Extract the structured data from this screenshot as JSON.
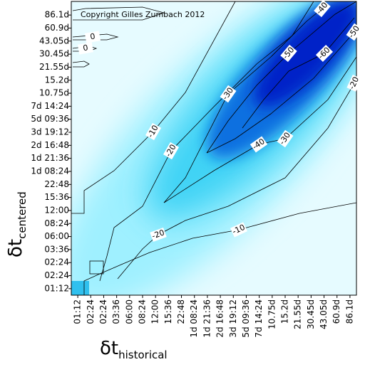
{
  "chart_data": {
    "type": "contour",
    "annotation": "Copyright Gilles Zumbach 2012",
    "xlabel": "δt",
    "xlabel_sub": "historical",
    "ylabel": "δt",
    "ylabel_sub": "centered",
    "categories": [
      "01:12",
      "02:24",
      "02:24",
      "03:36",
      "06:00",
      "08:24",
      "12:00",
      "15:36",
      "22:48",
      "1d 08:24",
      "1d 21:36",
      "2d 16:48",
      "3d 19:12",
      "5d 09:36",
      "7d 14:24",
      "10.75d",
      "15.2d",
      "21.55d",
      "30.45d",
      "43.05d",
      "60.9d",
      "86.1d"
    ],
    "y_categories": [
      "01:12",
      "02:24",
      "02:24",
      "03:36",
      "06:00",
      "08:24",
      "12:00",
      "15:36",
      "22:48",
      "1d 08:24",
      "1d 21:36",
      "2d 16:48",
      "3d 19:12",
      "5d 09:36",
      "7d 14:24",
      "10.75d",
      "15.2d",
      "21.55d",
      "30.45d",
      "43.05d",
      "60.9d",
      "86.1d"
    ],
    "contour_labels": [
      -10,
      -10,
      -20,
      -20,
      -20,
      -30,
      -30,
      -40,
      -40,
      -50,
      -50,
      -60,
      0,
      0
    ]
  }
}
